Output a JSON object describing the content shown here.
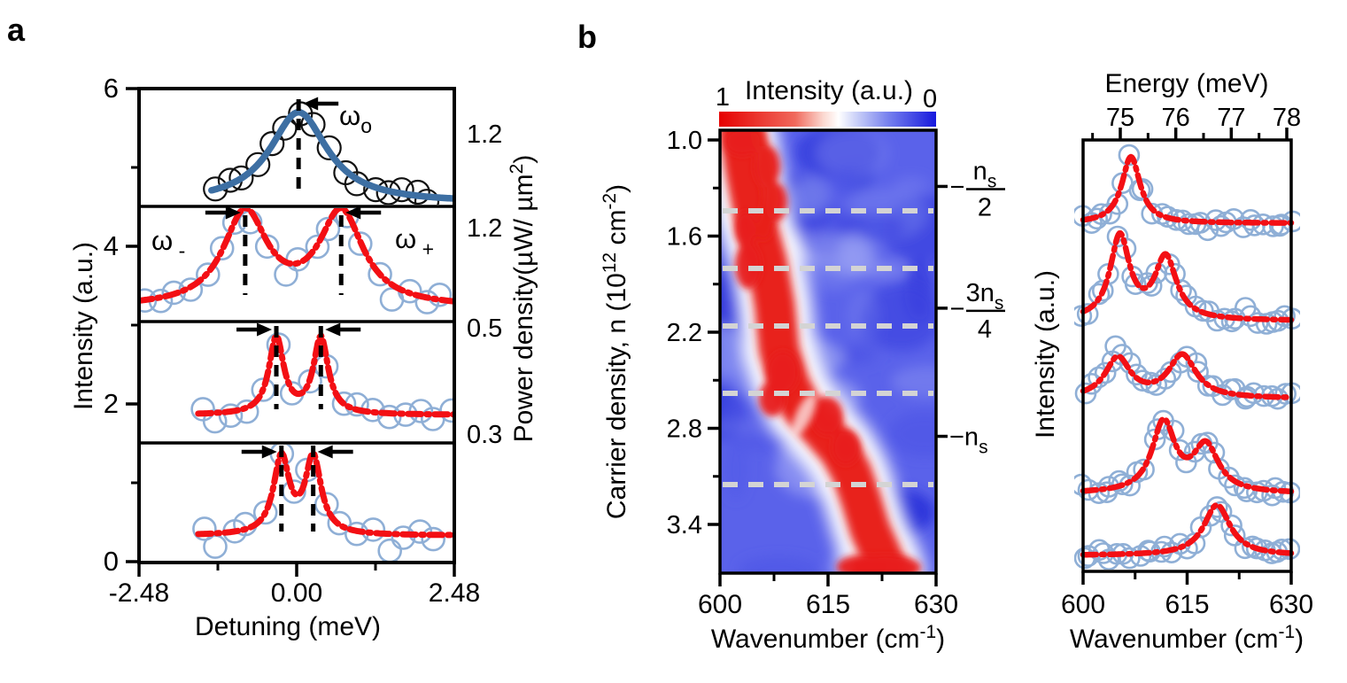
{
  "labels": {
    "panel_a": "a",
    "panel_b": "b"
  },
  "panel_a": {
    "ylabel": "Intensity (a.u.)",
    "xlabel": "Detuning (meV)",
    "x_tick_labels": [
      "-2.48",
      "0.00",
      "2.48"
    ],
    "y_tick_labels": [
      "6",
      "4",
      "2",
      "0"
    ],
    "right_axis_label_parts": [
      {
        "t": "Power density(µW/ µm"
      },
      {
        "t": "2",
        "sup": true
      },
      {
        "t": ")"
      }
    ],
    "power_labels": [
      "1.2",
      "1.2",
      "0.5",
      "0.3"
    ],
    "annotations": [
      {
        "parts": [
          {
            "t": "ω"
          },
          {
            "t": "o",
            "sub": true
          }
        ]
      },
      {
        "parts": [
          {
            "t": "ω"
          },
          {
            "t": " -",
            "sub": true
          }
        ]
      },
      {
        "parts": [
          {
            "t": "ω"
          },
          {
            "t": " +",
            "sub": true
          }
        ]
      }
    ]
  },
  "panel_b": {
    "heatmap": {
      "colorbar_title": "Intensity (a.u.)",
      "colorbar_left": "1",
      "colorbar_right": "0",
      "ylabel_parts": [
        {
          "t": "Carrier density, n (10"
        },
        {
          "t": "12",
          "sup": true
        },
        {
          "t": " cm"
        },
        {
          "t": "-2",
          "sup": true
        },
        {
          "t": ")"
        }
      ],
      "xlabel_parts": [
        {
          "t": "Wavenumber (cm"
        },
        {
          "t": "-1",
          "sup": true
        },
        {
          "t": ")"
        }
      ],
      "x_tick_labels": [
        "600",
        "615",
        "630"
      ],
      "y_tick_labels": [
        "1.0",
        "1.6",
        "2.2",
        "2.8",
        "3.4"
      ],
      "right_labels": [
        {
          "style": "fraction",
          "sign": "−",
          "numerator": "n",
          "numerator_sub": "s",
          "denominator": "2",
          "n": 1.29
        },
        {
          "style": "fraction",
          "sign": "−",
          "numerator": "3n",
          "numerator_sub": "s",
          "denominator": "4",
          "n": 2.05
        },
        {
          "style": "inline",
          "sign": "−",
          "text": "n",
          "text_sub": "s",
          "n": 2.85
        }
      ]
    },
    "spectra": {
      "ylabel": "Intensity (a.u.)",
      "top_label": "Energy (meV)",
      "top_tick_labels": [
        "75",
        "76",
        "77",
        "78"
      ],
      "x_tick_labels": [
        "600",
        "615",
        "630"
      ],
      "xlabel_parts": [
        {
          "t": "Wavenumber (cm"
        },
        {
          "t": "-1",
          "sup": true
        },
        {
          "t": ")"
        }
      ]
    }
  },
  "chart_data": [
    {
      "id": "power-dependent-spectra",
      "type": "line",
      "xlabel": "Detuning (meV)",
      "ylabel": "Intensity (a.u.)",
      "xlim": [
        -2.48,
        2.48
      ],
      "ylim": [
        0,
        6
      ],
      "x_ticks": [
        -2.48,
        0,
        2.48
      ],
      "x_minor_ticks": [
        -1.24,
        1.24
      ],
      "y_ticks": [
        6,
        4,
        2,
        0
      ],
      "y_minor_ticks": [
        5,
        3,
        1
      ],
      "right_axis_values": [
        1.2,
        1.2,
        0.5,
        0.3
      ],
      "series": [
        {
          "power_uW_um2": 1.2,
          "style": "blue-solid",
          "marker": "black-open-circle",
          "baseline": 4.55,
          "peaks": [
            {
              "center": 0.03,
              "amplitude": 1.15,
              "hwhm": 0.55
            }
          ],
          "line_x_range": [
            -1.34,
            2.48
          ],
          "data_x_range": [
            -1.28,
            2.3
          ],
          "point_step": 0.225
        },
        {
          "power_uW_um2": 1.2,
          "style": "red-dashed",
          "marker": "lightblue-open-circle",
          "baseline": 3.22,
          "peaks": [
            {
              "center": -0.81,
              "amplitude": 1.18,
              "hwhm": 0.42
            },
            {
              "center": 0.7,
              "amplitude": 1.18,
              "hwhm": 0.42
            }
          ],
          "line_x_range": [
            -2.48,
            2.48
          ],
          "data_x_range": [
            -2.4,
            2.42
          ],
          "point_step": 0.245
        },
        {
          "power_uW_um2": 0.5,
          "style": "red-dashed",
          "marker": "lightblue-open-circle",
          "baseline": 1.86,
          "peaks": [
            {
              "center": -0.32,
              "amplitude": 0.97,
              "hwhm": 0.14
            },
            {
              "center": 0.38,
              "amplitude": 0.97,
              "hwhm": 0.14
            }
          ],
          "line_x_range": [
            -1.55,
            2.48
          ],
          "data_x_range": [
            -1.5,
            2.42
          ],
          "point_step": 0.245
        },
        {
          "power_uW_um2": 0.3,
          "style": "red-dashed",
          "marker": "lightblue-open-circle",
          "baseline": 0.33,
          "peaks": [
            {
              "center": -0.24,
              "amplitude": 0.97,
              "hwhm": 0.15
            },
            {
              "center": 0.26,
              "amplitude": 0.97,
              "hwhm": 0.15
            }
          ],
          "line_x_range": [
            -1.55,
            2.48
          ],
          "data_x_range": [
            -1.5,
            2.35
          ],
          "point_step": 0.245
        }
      ]
    },
    {
      "id": "carrier-density-map",
      "type": "heatmap",
      "xlabel": "Wavenumber (cm-1)",
      "ylabel": "Carrier density, n (10^12 cm-2)",
      "colorbar": {
        "title": "Intensity (a.u.)",
        "max_label": "1",
        "min_label": "0",
        "max_color": "#e60000",
        "min_color": "#1618dd"
      },
      "xlim": [
        600,
        630
      ],
      "ylim_top_to_bottom": [
        1.0,
        3.4
      ],
      "x_ticks": [
        600,
        615,
        630
      ],
      "x_minor_ticks": [
        607.5,
        622.5
      ],
      "y_ticks": [
        1.0,
        1.6,
        2.2,
        2.8,
        3.4
      ],
      "y_minor_ticks": [
        1.3,
        1.9,
        2.5,
        3.1
      ],
      "dashed_line_n": [
        1.44,
        1.8,
        2.16,
        2.58,
        3.15
      ],
      "right_tick_n": [
        1.29,
        2.05,
        2.85
      ],
      "ridge": [
        {
          "n": 0.94,
          "w": 602.7
        },
        {
          "n": 1.2,
          "w": 603.6
        },
        {
          "n": 1.48,
          "w": 604.8
        },
        {
          "n": 1.76,
          "w": 606.5
        },
        {
          "n": 2.03,
          "w": 607.6
        },
        {
          "n": 2.31,
          "w": 608.2
        },
        {
          "n": 2.53,
          "w": 609.7
        },
        {
          "n": 2.67,
          "w": 611.3
        },
        {
          "n": 2.81,
          "w": 614.1
        },
        {
          "n": 2.94,
          "w": 616.6
        },
        {
          "n": 3.08,
          "w": 618.3
        },
        {
          "n": 3.25,
          "w": 619.6
        },
        {
          "n": 3.43,
          "w": 620.8
        },
        {
          "n": 3.58,
          "w": 622.3
        },
        {
          "n": 3.7,
          "w": 623.4
        }
      ]
    },
    {
      "id": "density-dependent-spectra",
      "type": "line",
      "xlabel": "Wavenumber (cm-1)",
      "top_xlabel": "Energy (meV)",
      "ylabel": "Intensity (a.u.)",
      "xlim": [
        600,
        630
      ],
      "x_ticks": [
        600,
        615,
        630
      ],
      "x_minor_ticks": [
        607.5,
        622.5
      ],
      "top_ticks": [
        75,
        76,
        77,
        78
      ],
      "top_minor_ticks": [
        74.5,
        75.5,
        76.5,
        77.5
      ],
      "style": "red-dashed",
      "marker": "lightblue-open-circle",
      "point_step": 1.0,
      "series": [
        {
          "offset_au": 5.0,
          "peaks": [
            {
              "center": 606.9,
              "amplitude": 1.0,
              "hwhm": 1.6
            }
          ]
        },
        {
          "offset_au": 3.53,
          "peaks": [
            {
              "center": 605.3,
              "amplitude": 1.25,
              "hwhm": 1.7
            },
            {
              "center": 611.9,
              "amplitude": 0.93,
              "hwhm": 1.9
            }
          ]
        },
        {
          "offset_au": 2.36,
          "peaks": [
            {
              "center": 605.0,
              "amplitude": 0.6,
              "hwhm": 2.2
            },
            {
              "center": 614.3,
              "amplitude": 0.64,
              "hwhm": 2.4
            }
          ]
        },
        {
          "offset_au": 0.93,
          "peaks": [
            {
              "center": 611.6,
              "amplitude": 1.05,
              "hwhm": 2.0
            },
            {
              "center": 617.7,
              "amplitude": 0.69,
              "hwhm": 2.2
            }
          ]
        },
        {
          "offset_au": 0.0,
          "peaks": [
            {
              "center": 619.3,
              "amplitude": 0.76,
              "hwhm": 2.3
            }
          ]
        }
      ]
    }
  ],
  "colors": {
    "fit_blue": "#3d6fa3",
    "fit_red": "#f30f14",
    "marker_black": "#111111",
    "marker_lightblue": "#8fafd6",
    "heat_base_blue": "#5a62ea",
    "heat_red": "#e8201a",
    "dashed_gray": "#d4d4d4"
  }
}
